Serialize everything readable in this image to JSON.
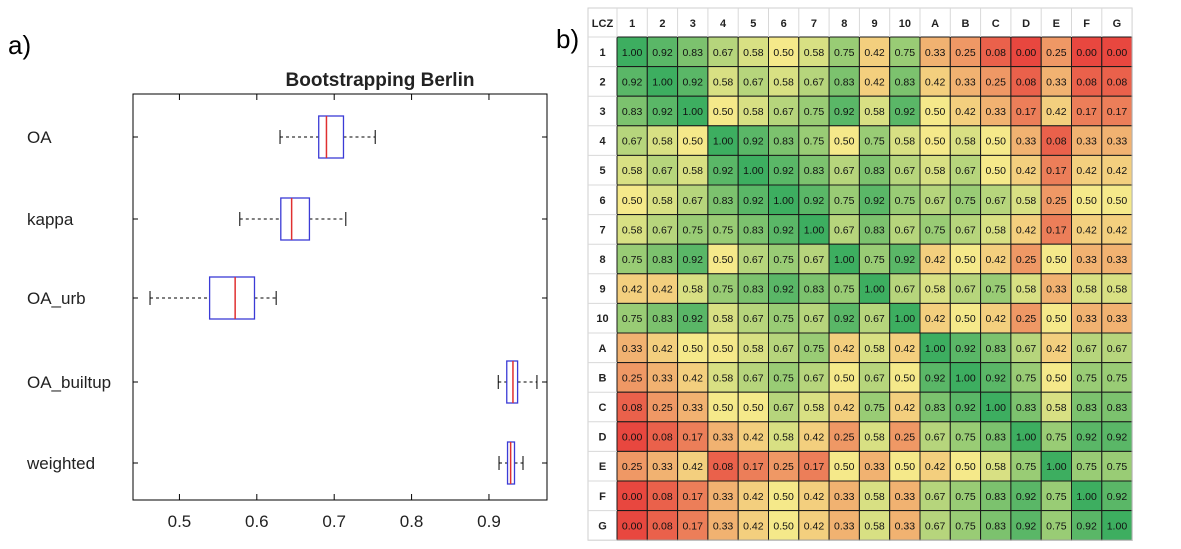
{
  "panel_labels": {
    "a": "a)",
    "b": "b)"
  },
  "chart_data": [
    {
      "type": "box",
      "title": "Bootstrapping Berlin",
      "xlabel": "",
      "ylabel": "",
      "xlim": [
        0.44,
        0.975
      ],
      "xticks": [
        "0.5",
        "0.6",
        "0.7",
        "0.8",
        "0.9"
      ],
      "grid": false,
      "colors": {
        "box": "#3b3bd6",
        "median": "#e03030",
        "whisker": "#000000"
      },
      "series": [
        {
          "label": "OA",
          "whisker_low": 0.63,
          "q1": 0.68,
          "median": 0.69,
          "q3": 0.712,
          "whisker_high": 0.753
        },
        {
          "label": "kappa",
          "whisker_low": 0.578,
          "q1": 0.631,
          "median": 0.645,
          "q3": 0.668,
          "whisker_high": 0.715
        },
        {
          "label": "OA_urb",
          "whisker_low": 0.462,
          "q1": 0.539,
          "median": 0.572,
          "q3": 0.597,
          "whisker_high": 0.625
        },
        {
          "label": "OA_builtup",
          "whisker_low": 0.912,
          "q1": 0.923,
          "median": 0.931,
          "q3": 0.937,
          "whisker_high": 0.962
        },
        {
          "label": "weighted",
          "whisker_low": 0.913,
          "q1": 0.924,
          "median": 0.928,
          "q3": 0.933,
          "whisker_high": 0.944
        }
      ]
    },
    {
      "type": "heatmap",
      "corner_label": "LCZ",
      "labels": [
        "1",
        "2",
        "3",
        "4",
        "5",
        "6",
        "7",
        "8",
        "9",
        "10",
        "A",
        "B",
        "C",
        "D",
        "E",
        "F",
        "G"
      ],
      "colorscale": {
        "low": "#e8473f",
        "mid": "#f5e98a",
        "high": "#3dae60"
      },
      "values": [
        [
          "1.00",
          "0.92",
          "0.83",
          "0.67",
          "0.58",
          "0.50",
          "0.58",
          "0.75",
          "0.42",
          "0.75",
          "0.33",
          "0.25",
          "0.08",
          "0.00",
          "0.25",
          "0.00",
          "0.00"
        ],
        [
          "0.92",
          "1.00",
          "0.92",
          "0.58",
          "0.67",
          "0.58",
          "0.67",
          "0.83",
          "0.42",
          "0.83",
          "0.42",
          "0.33",
          "0.25",
          "0.08",
          "0.33",
          "0.08",
          "0.08"
        ],
        [
          "0.83",
          "0.92",
          "1.00",
          "0.50",
          "0.58",
          "0.67",
          "0.75",
          "0.92",
          "0.58",
          "0.92",
          "0.50",
          "0.42",
          "0.33",
          "0.17",
          "0.42",
          "0.17",
          "0.17"
        ],
        [
          "0.67",
          "0.58",
          "0.50",
          "1.00",
          "0.92",
          "0.83",
          "0.75",
          "0.50",
          "0.75",
          "0.58",
          "0.50",
          "0.58",
          "0.50",
          "0.33",
          "0.08",
          "0.33",
          "0.33"
        ],
        [
          "0.58",
          "0.67",
          "0.58",
          "0.92",
          "1.00",
          "0.92",
          "0.83",
          "0.67",
          "0.83",
          "0.67",
          "0.58",
          "0.67",
          "0.50",
          "0.42",
          "0.17",
          "0.42",
          "0.42"
        ],
        [
          "0.50",
          "0.58",
          "0.67",
          "0.83",
          "0.92",
          "1.00",
          "0.92",
          "0.75",
          "0.92",
          "0.75",
          "0.67",
          "0.75",
          "0.67",
          "0.58",
          "0.25",
          "0.50",
          "0.50"
        ],
        [
          "0.58",
          "0.67",
          "0.75",
          "0.75",
          "0.83",
          "0.92",
          "1.00",
          "0.67",
          "0.83",
          "0.67",
          "0.75",
          "0.67",
          "0.58",
          "0.42",
          "0.17",
          "0.42",
          "0.42"
        ],
        [
          "0.75",
          "0.83",
          "0.92",
          "0.50",
          "0.67",
          "0.75",
          "0.67",
          "1.00",
          "0.75",
          "0.92",
          "0.42",
          "0.50",
          "0.42",
          "0.25",
          "0.50",
          "0.33",
          "0.33"
        ],
        [
          "0.42",
          "0.42",
          "0.58",
          "0.75",
          "0.83",
          "0.92",
          "0.83",
          "0.75",
          "1.00",
          "0.67",
          "0.58",
          "0.67",
          "0.75",
          "0.58",
          "0.33",
          "0.58",
          "0.58"
        ],
        [
          "0.75",
          "0.83",
          "0.92",
          "0.58",
          "0.67",
          "0.75",
          "0.67",
          "0.92",
          "0.67",
          "1.00",
          "0.42",
          "0.50",
          "0.42",
          "0.25",
          "0.50",
          "0.33",
          "0.33"
        ],
        [
          "0.33",
          "0.42",
          "0.50",
          "0.50",
          "0.58",
          "0.67",
          "0.75",
          "0.42",
          "0.58",
          "0.42",
          "1.00",
          "0.92",
          "0.83",
          "0.67",
          "0.42",
          "0.67",
          "0.67"
        ],
        [
          "0.25",
          "0.33",
          "0.42",
          "0.58",
          "0.67",
          "0.75",
          "0.67",
          "0.50",
          "0.67",
          "0.50",
          "0.92",
          "1.00",
          "0.92",
          "0.75",
          "0.50",
          "0.75",
          "0.75"
        ],
        [
          "0.08",
          "0.25",
          "0.33",
          "0.50",
          "0.50",
          "0.67",
          "0.58",
          "0.42",
          "0.75",
          "0.42",
          "0.83",
          "0.92",
          "1.00",
          "0.83",
          "0.58",
          "0.83",
          "0.83"
        ],
        [
          "0.00",
          "0.08",
          "0.17",
          "0.33",
          "0.42",
          "0.58",
          "0.42",
          "0.25",
          "0.58",
          "0.25",
          "0.67",
          "0.75",
          "0.83",
          "1.00",
          "0.75",
          "0.92",
          "0.92"
        ],
        [
          "0.25",
          "0.33",
          "0.42",
          "0.08",
          "0.17",
          "0.25",
          "0.17",
          "0.50",
          "0.33",
          "0.50",
          "0.42",
          "0.50",
          "0.58",
          "0.75",
          "1.00",
          "0.75",
          "0.75"
        ],
        [
          "0.00",
          "0.08",
          "0.17",
          "0.33",
          "0.42",
          "0.50",
          "0.42",
          "0.33",
          "0.58",
          "0.33",
          "0.67",
          "0.75",
          "0.83",
          "0.92",
          "0.75",
          "1.00",
          "0.92"
        ],
        [
          "0.00",
          "0.08",
          "0.17",
          "0.33",
          "0.42",
          "0.50",
          "0.42",
          "0.33",
          "0.58",
          "0.33",
          "0.67",
          "0.75",
          "0.83",
          "0.92",
          "0.75",
          "0.92",
          "1.00"
        ]
      ]
    }
  ]
}
